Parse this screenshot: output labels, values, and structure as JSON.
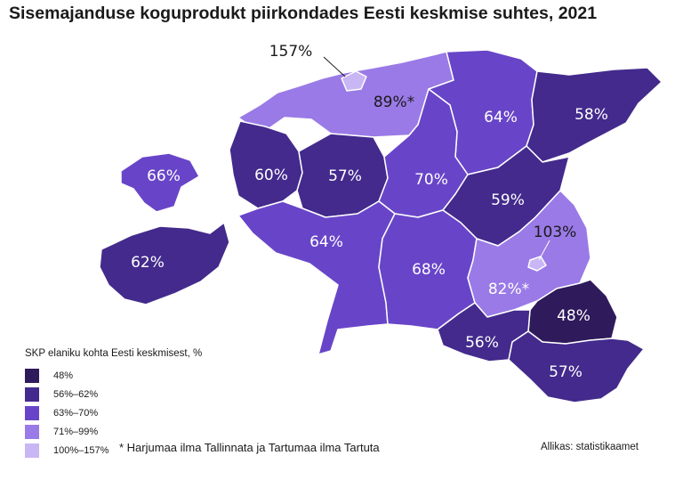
{
  "title": "Sisemajanduse koguprodukt piirkondades Eesti keskmise suhtes, 2021",
  "colors": {
    "c48": "#2f1a5c",
    "c56_62": "#432a8c",
    "c63_70": "#6845c8",
    "c71_99": "#9a7ae6",
    "c100_157": "#c9b6f4",
    "border": "#ffffff"
  },
  "regions": [
    {
      "name": "Tallinn",
      "value": "157%",
      "class": "c100_157"
    },
    {
      "name": "Harjumaa",
      "value": "89%*",
      "class": "c71_99"
    },
    {
      "name": "Lääne-Virumaa",
      "value": "64%",
      "class": "c63_70"
    },
    {
      "name": "Ida-Virumaa",
      "value": "58%",
      "class": "c56_62"
    },
    {
      "name": "Hiiumaa",
      "value": "66%",
      "class": "c63_70"
    },
    {
      "name": "Läänemaa",
      "value": "60%",
      "class": "c56_62"
    },
    {
      "name": "Raplamaa",
      "value": "57%",
      "class": "c56_62"
    },
    {
      "name": "Järvamaa",
      "value": "70%",
      "class": "c63_70"
    },
    {
      "name": "Jõgevamaa",
      "value": "59%",
      "class": "c56_62"
    },
    {
      "name": "Saaremaa",
      "value": "62%",
      "class": "c56_62"
    },
    {
      "name": "Pärnumaa",
      "value": "64%",
      "class": "c63_70"
    },
    {
      "name": "Viljandimaa",
      "value": "68%",
      "class": "c63_70"
    },
    {
      "name": "Tartu",
      "value": "103%",
      "class": "c100_157"
    },
    {
      "name": "Tartumaa",
      "value": "82%*",
      "class": "c71_99"
    },
    {
      "name": "Põlvamaa",
      "value": "48%",
      "class": "c48"
    },
    {
      "name": "Valgamaa",
      "value": "56%",
      "class": "c56_62"
    },
    {
      "name": "Võrumaa",
      "value": "57%",
      "class": "c56_62"
    }
  ],
  "legend": {
    "title": "SKP elaniku kohta Eesti keskmisest, %",
    "items": [
      {
        "label": "48%",
        "color": "#2f1a5c"
      },
      {
        "label": "56%–62%",
        "color": "#432a8c"
      },
      {
        "label": "63%–70%",
        "color": "#6845c8"
      },
      {
        "label": "71%–99%",
        "color": "#9a7ae6"
      },
      {
        "label": "100%–157%",
        "color": "#c9b6f4"
      }
    ]
  },
  "footnote": "* Harjumaa ilma Tallinnata ja Tartumaa ilma Tartuta",
  "source": "Allikas: statistikaamet"
}
